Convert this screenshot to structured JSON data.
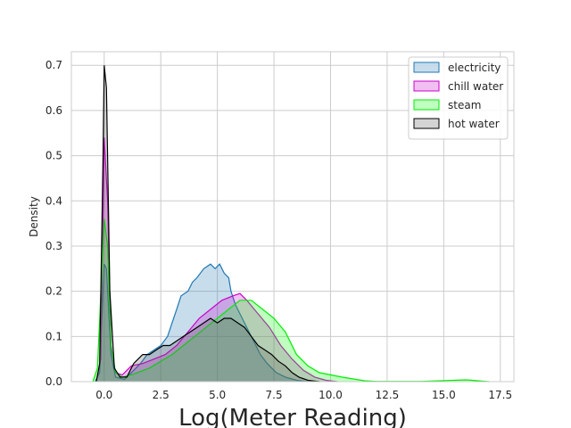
{
  "chart_data": {
    "type": "area",
    "title": "",
    "xlabel": "Log(Meter Reading)",
    "ylabel": "Density",
    "xlim": [
      -1.45,
      18.1
    ],
    "ylim": [
      0,
      0.73
    ],
    "xticks": [
      0.0,
      2.5,
      5.0,
      7.5,
      10.0,
      12.5,
      15.0,
      17.5
    ],
    "xtick_labels": [
      "0.0",
      "2.5",
      "5.0",
      "7.5",
      "10.0",
      "12.5",
      "15.0",
      "17.5"
    ],
    "yticks": [
      0.0,
      0.1,
      0.2,
      0.3,
      0.4,
      0.5,
      0.6,
      0.7
    ],
    "ytick_labels": [
      "0.0",
      "0.1",
      "0.2",
      "0.3",
      "0.4",
      "0.5",
      "0.6",
      "0.7"
    ],
    "grid": true,
    "legend_position": "top-right",
    "series": [
      {
        "name": "electricity",
        "color": "#1f77b4",
        "fill": "#1f77b4",
        "points": [
          [
            -0.4,
            0
          ],
          [
            -0.2,
            0.02
          ],
          [
            0,
            0.26
          ],
          [
            0.1,
            0.25
          ],
          [
            0.3,
            0.06
          ],
          [
            0.5,
            0.01
          ],
          [
            0.9,
            0.005
          ],
          [
            1.2,
            0.02
          ],
          [
            1.6,
            0.04
          ],
          [
            1.9,
            0.06
          ],
          [
            2.2,
            0.07
          ],
          [
            2.5,
            0.08
          ],
          [
            2.8,
            0.1
          ],
          [
            3.0,
            0.13
          ],
          [
            3.2,
            0.16
          ],
          [
            3.4,
            0.19
          ],
          [
            3.7,
            0.2
          ],
          [
            3.9,
            0.22
          ],
          [
            4.1,
            0.23
          ],
          [
            4.4,
            0.25
          ],
          [
            4.7,
            0.26
          ],
          [
            4.9,
            0.25
          ],
          [
            5.1,
            0.26
          ],
          [
            5.3,
            0.24
          ],
          [
            5.5,
            0.23
          ],
          [
            5.6,
            0.2
          ],
          [
            5.8,
            0.17
          ],
          [
            6.0,
            0.15
          ],
          [
            6.3,
            0.12
          ],
          [
            6.6,
            0.09
          ],
          [
            6.9,
            0.06
          ],
          [
            7.2,
            0.04
          ],
          [
            7.6,
            0.02
          ],
          [
            8.0,
            0.01
          ],
          [
            8.5,
            0.003
          ],
          [
            9.0,
            0
          ]
        ]
      },
      {
        "name": "chill water",
        "color": "#cc00cc",
        "fill": "#cc00cc",
        "points": [
          [
            -0.35,
            0
          ],
          [
            -0.15,
            0.05
          ],
          [
            0,
            0.54
          ],
          [
            0.15,
            0.4
          ],
          [
            0.3,
            0.08
          ],
          [
            0.5,
            0.02
          ],
          [
            0.8,
            0.015
          ],
          [
            1.2,
            0.035
          ],
          [
            1.7,
            0.04
          ],
          [
            2.2,
            0.05
          ],
          [
            2.7,
            0.06
          ],
          [
            3.2,
            0.08
          ],
          [
            3.7,
            0.11
          ],
          [
            4.2,
            0.14
          ],
          [
            4.7,
            0.16
          ],
          [
            5.2,
            0.18
          ],
          [
            5.7,
            0.19
          ],
          [
            6.0,
            0.195
          ],
          [
            6.3,
            0.18
          ],
          [
            6.8,
            0.15
          ],
          [
            7.3,
            0.12
          ],
          [
            7.8,
            0.08
          ],
          [
            8.3,
            0.05
          ],
          [
            8.8,
            0.025
          ],
          [
            9.3,
            0.01
          ],
          [
            9.8,
            0.003
          ],
          [
            10.3,
            0
          ]
        ]
      },
      {
        "name": "steam",
        "color": "#00ee00",
        "fill": "#00ff00",
        "points": [
          [
            -0.5,
            0
          ],
          [
            -0.3,
            0.03
          ],
          [
            -0.1,
            0.25
          ],
          [
            0,
            0.36
          ],
          [
            0.15,
            0.3
          ],
          [
            0.3,
            0.08
          ],
          [
            0.5,
            0.02
          ],
          [
            0.8,
            0.01
          ],
          [
            1.2,
            0.015
          ],
          [
            2.0,
            0.03
          ],
          [
            3.0,
            0.06
          ],
          [
            3.5,
            0.08
          ],
          [
            4.0,
            0.1
          ],
          [
            4.5,
            0.12
          ],
          [
            5.0,
            0.14
          ],
          [
            5.5,
            0.16
          ],
          [
            6.0,
            0.18
          ],
          [
            6.5,
            0.18
          ],
          [
            7.0,
            0.16
          ],
          [
            7.5,
            0.14
          ],
          [
            8.0,
            0.11
          ],
          [
            8.5,
            0.06
          ],
          [
            9.0,
            0.035
          ],
          [
            9.5,
            0.02
          ],
          [
            10.0,
            0.015
          ],
          [
            10.5,
            0.01
          ],
          [
            11.0,
            0.006
          ],
          [
            11.5,
            0.002
          ],
          [
            12.0,
            0.0005
          ],
          [
            14.0,
            0.0005
          ],
          [
            16.0,
            0.004
          ],
          [
            17.0,
            0
          ]
        ]
      },
      {
        "name": "hot water",
        "color": "#000000",
        "fill": "#555555",
        "points": [
          [
            -0.35,
            0
          ],
          [
            -0.2,
            0.04
          ],
          [
            -0.05,
            0.5
          ],
          [
            0,
            0.7
          ],
          [
            0.1,
            0.65
          ],
          [
            0.25,
            0.2
          ],
          [
            0.45,
            0.03
          ],
          [
            0.7,
            0.01
          ],
          [
            1.0,
            0.01
          ],
          [
            1.3,
            0.04
          ],
          [
            1.5,
            0.05
          ],
          [
            1.7,
            0.06
          ],
          [
            2.0,
            0.06
          ],
          [
            2.3,
            0.07
          ],
          [
            2.6,
            0.08
          ],
          [
            2.9,
            0.08
          ],
          [
            3.2,
            0.09
          ],
          [
            3.5,
            0.1
          ],
          [
            3.8,
            0.11
          ],
          [
            4.1,
            0.12
          ],
          [
            4.4,
            0.13
          ],
          [
            4.7,
            0.14
          ],
          [
            5.0,
            0.13
          ],
          [
            5.3,
            0.14
          ],
          [
            5.6,
            0.14
          ],
          [
            5.9,
            0.13
          ],
          [
            6.2,
            0.12
          ],
          [
            6.5,
            0.1
          ],
          [
            6.8,
            0.08
          ],
          [
            7.1,
            0.07
          ],
          [
            7.4,
            0.06
          ],
          [
            7.7,
            0.045
          ],
          [
            8.0,
            0.035
          ],
          [
            8.3,
            0.02
          ],
          [
            8.6,
            0.01
          ],
          [
            9.0,
            0.003
          ],
          [
            9.5,
            0
          ]
        ]
      }
    ]
  }
}
